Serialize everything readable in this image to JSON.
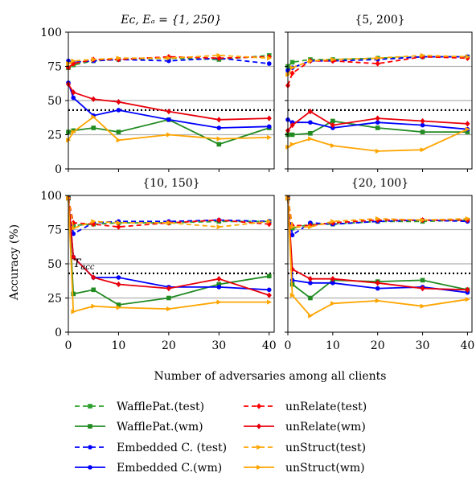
{
  "figure": {
    "ylabel": "Accuracy (%)",
    "xlabel": "Number of adversaries among all clients",
    "threshold_label": "T_acc",
    "threshold_value": 43
  },
  "legend": [
    {
      "name": "WafflePat.(test)",
      "color": "#2ca02c",
      "style": "dashed",
      "marker": "square"
    },
    {
      "name": "unRelate(test)",
      "color": "#ff0000",
      "style": "dashed",
      "marker": "diamond"
    },
    {
      "name": "WafflePat.(wm)",
      "color": "#228b22",
      "style": "solid",
      "marker": "square"
    },
    {
      "name": "unRelate(wm)",
      "color": "#e8000b",
      "style": "solid",
      "marker": "diamond"
    },
    {
      "name": "Embedded C. (test)",
      "color": "#0000ff",
      "style": "dashed",
      "marker": "circle"
    },
    {
      "name": "unStruct(test)",
      "color": "#ffa500",
      "style": "dashed",
      "marker": "triangle-right"
    },
    {
      "name": "Embedded C.(wm)",
      "color": "#0000ff",
      "style": "solid",
      "marker": "circle"
    },
    {
      "name": "unStruct(wm)",
      "color": "#ffa500",
      "style": "solid",
      "marker": "triangle-right"
    }
  ],
  "chart_data": [
    {
      "type": "line",
      "title": "E_c, E_a = {1, 250}",
      "x": [
        0,
        1,
        5,
        10,
        20,
        30,
        40
      ],
      "xlim": [
        0,
        41
      ],
      "ylim": [
        0,
        100
      ],
      "xticks": [
        0,
        10,
        20,
        30,
        40
      ],
      "yticks": [
        0,
        25,
        50,
        75,
        100
      ],
      "show_xtick_labels": false,
      "show_ytick_labels": true,
      "grid": "horizontal",
      "series": [
        {
          "name": "WafflePat.(test)",
          "values": [
            74,
            76,
            79,
            80,
            81,
            80,
            83
          ]
        },
        {
          "name": "Embedded C. (test)",
          "values": [
            79,
            78,
            79,
            80,
            79,
            81,
            77
          ]
        },
        {
          "name": "unRelate(test)",
          "values": [
            74,
            77,
            80,
            80,
            82,
            81,
            82
          ]
        },
        {
          "name": "unStruct(test)",
          "values": [
            77,
            79,
            80,
            81,
            81,
            83,
            81
          ]
        },
        {
          "name": "WafflePat.(wm)",
          "values": [
            27,
            28,
            30,
            27,
            36,
            18,
            30
          ]
        },
        {
          "name": "Embedded C.(wm)",
          "values": [
            63,
            52,
            39,
            43,
            36,
            30,
            31
          ]
        },
        {
          "name": "unRelate(wm)",
          "values": [
            62,
            56,
            51,
            49,
            42,
            36,
            37
          ]
        },
        {
          "name": "unStruct(wm)",
          "values": [
            21,
            27,
            38,
            21,
            25,
            22,
            23
          ]
        }
      ]
    },
    {
      "type": "line",
      "title": "{5, 200}",
      "x": [
        0,
        1,
        5,
        10,
        20,
        30,
        40
      ],
      "xlim": [
        0,
        41
      ],
      "ylim": [
        0,
        100
      ],
      "xticks": [
        0,
        10,
        20,
        30,
        40
      ],
      "yticks": [
        0,
        25,
        50,
        75,
        100
      ],
      "show_xtick_labels": false,
      "show_ytick_labels": false,
      "grid": "horizontal",
      "series": [
        {
          "name": "WafflePat.(test)",
          "values": [
            75,
            78,
            80,
            80,
            81,
            82,
            82
          ]
        },
        {
          "name": "Embedded C. (test)",
          "values": [
            72,
            74,
            79,
            79,
            80,
            82,
            82
          ]
        },
        {
          "name": "unRelate(test)",
          "values": [
            61,
            70,
            79,
            79,
            77,
            82,
            81
          ]
        },
        {
          "name": "unStruct(test)",
          "values": [
            69,
            74,
            79,
            80,
            81,
            83,
            82
          ]
        },
        {
          "name": "WafflePat.(wm)",
          "values": [
            25,
            25,
            26,
            35,
            30,
            27,
            27
          ]
        },
        {
          "name": "Embedded C.(wm)",
          "values": [
            36,
            34,
            34,
            30,
            34,
            32,
            29
          ]
        },
        {
          "name": "unRelate(wm)",
          "values": [
            28,
            32,
            42,
            32,
            37,
            35,
            33
          ]
        },
        {
          "name": "unStruct(wm)",
          "values": [
            16,
            18,
            22,
            17,
            13,
            14,
            29
          ]
        }
      ]
    },
    {
      "type": "line",
      "title": "{10, 150}",
      "x": [
        0,
        1,
        5,
        10,
        20,
        30,
        40
      ],
      "xlim": [
        0,
        41
      ],
      "ylim": [
        0,
        100
      ],
      "xticks": [
        0,
        10,
        20,
        30,
        40
      ],
      "yticks": [
        0,
        25,
        50,
        75,
        100
      ],
      "show_xtick_labels": true,
      "show_ytick_labels": true,
      "grid": "horizontal",
      "series": [
        {
          "name": "WafflePat.(test)",
          "values": [
            98,
            78,
            79,
            80,
            80,
            81,
            81
          ]
        },
        {
          "name": "Embedded C. (test)",
          "values": [
            98,
            72,
            80,
            81,
            81,
            82,
            81
          ]
        },
        {
          "name": "unRelate(test)",
          "values": [
            98,
            80,
            79,
            77,
            80,
            82,
            79
          ]
        },
        {
          "name": "unStruct(test)",
          "values": [
            98,
            76,
            81,
            80,
            80,
            77,
            81
          ]
        },
        {
          "name": "WafflePat.(wm)",
          "values": [
            98,
            28,
            31,
            20,
            25,
            35,
            41
          ]
        },
        {
          "name": "Embedded C.(wm)",
          "values": [
            98,
            55,
            40,
            40,
            33,
            33,
            31
          ]
        },
        {
          "name": "unRelate(wm)",
          "values": [
            98,
            55,
            40,
            35,
            32,
            39,
            27
          ]
        },
        {
          "name": "unStruct(wm)",
          "values": [
            98,
            15,
            19,
            18,
            17,
            22,
            22
          ]
        }
      ]
    },
    {
      "type": "line",
      "title": "{20, 100}",
      "x": [
        0,
        1,
        5,
        10,
        20,
        30,
        40
      ],
      "xlim": [
        0,
        41
      ],
      "ylim": [
        0,
        100
      ],
      "xticks": [
        0,
        10,
        20,
        30,
        40
      ],
      "yticks": [
        0,
        25,
        50,
        75,
        100
      ],
      "show_xtick_labels": true,
      "show_ytick_labels": false,
      "grid": "horizontal",
      "series": [
        {
          "name": "WafflePat.(test)",
          "values": [
            98,
            76,
            79,
            79,
            81,
            81,
            82
          ]
        },
        {
          "name": "Embedded C. (test)",
          "values": [
            98,
            71,
            80,
            79,
            81,
            82,
            81
          ]
        },
        {
          "name": "unRelate(test)",
          "values": [
            98,
            78,
            78,
            80,
            82,
            82,
            82
          ]
        },
        {
          "name": "unStruct(test)",
          "values": [
            98,
            77,
            77,
            81,
            83,
            82,
            83
          ]
        },
        {
          "name": "WafflePat.(wm)",
          "values": [
            98,
            35,
            25,
            38,
            37,
            38,
            31
          ]
        },
        {
          "name": "Embedded C.(wm)",
          "values": [
            98,
            38,
            36,
            36,
            32,
            33,
            29
          ]
        },
        {
          "name": "unRelate(wm)",
          "values": [
            98,
            46,
            39,
            39,
            36,
            32,
            31
          ]
        },
        {
          "name": "unStruct(wm)",
          "values": [
            98,
            27,
            12,
            21,
            23,
            19,
            24
          ]
        }
      ]
    }
  ]
}
